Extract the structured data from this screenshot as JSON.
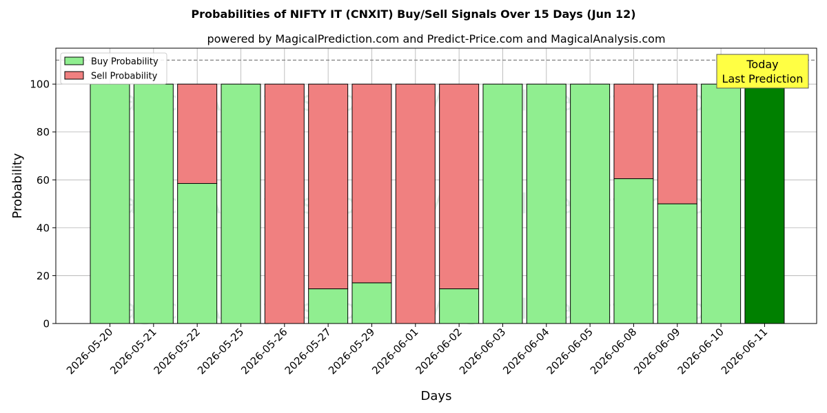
{
  "chart_data": {
    "type": "bar",
    "stacked": true,
    "title": "Probabilities of NIFTY IT (CNXIT) Buy/Sell Signals Over 15 Days (Jun 12)",
    "subtitle": "powered by MagicalPrediction.com and Predict-Price.com and MagicalAnalysis.com",
    "xlabel": "Days",
    "ylabel": "Probability",
    "ylim": [
      0,
      115
    ],
    "yticks": [
      0,
      20,
      40,
      60,
      80,
      100
    ],
    "reference_line": 110,
    "grid": true,
    "legend_position": "top-left",
    "categories": [
      "2026-05-20",
      "2026-05-21",
      "2026-05-22",
      "2026-05-25",
      "2026-05-26",
      "2026-05-27",
      "2026-05-29",
      "2026-06-01",
      "2026-06-02",
      "2026-06-03",
      "2026-06-04",
      "2026-06-05",
      "2026-06-08",
      "2026-06-09",
      "2026-06-10",
      "2026-06-11"
    ],
    "series": [
      {
        "name": "Buy Probability",
        "color": "#90ee90",
        "values": [
          100,
          100,
          58.5,
          100,
          0,
          14.5,
          17,
          0,
          14.5,
          100,
          100,
          100,
          60.5,
          50,
          100,
          100
        ]
      },
      {
        "name": "Sell Probability",
        "color": "#f08080",
        "values": [
          0,
          0,
          41.5,
          0,
          100,
          85.5,
          83,
          100,
          85.5,
          0,
          0,
          0,
          39.5,
          50,
          0,
          0
        ]
      }
    ],
    "highlight": {
      "index": 15,
      "color": "#008000",
      "label_lines": [
        "Today",
        "Last Prediction"
      ],
      "label_bg": "#ffff44"
    },
    "watermarks": [
      "MagicalAnalysis.com",
      "MagicalPrediction.com"
    ]
  }
}
